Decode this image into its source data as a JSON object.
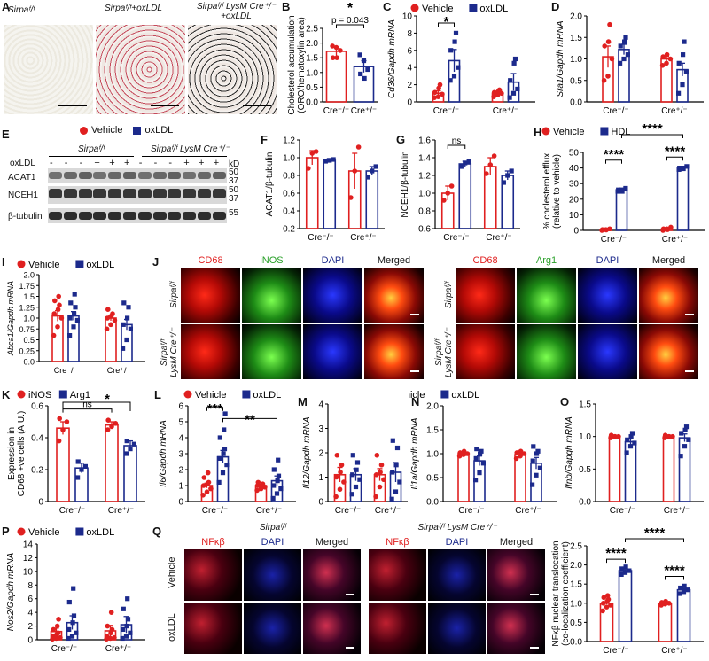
{
  "colors": {
    "vehicle": "#e02020",
    "oxldl": "#1c2a8c",
    "hdl": "#1c2a8c",
    "inos": "#e02020",
    "arg1": "#1c2a8c"
  },
  "panels": {
    "A": {
      "label": "A",
      "titles": [
        "Sirpaᶠ/ᶠ",
        "Sirpaᶠ/ᶠ+oxLDL",
        "Sirpaᶠ/ᶠ LysM Cre⁺/⁻\n+oxLDL"
      ]
    },
    "B": {
      "label": "B",
      "ylabel": "Cholesterol accumulation\n(ORO/hematoxylin area)",
      "pval": "p = 0.043",
      "star": "*"
    },
    "C": {
      "label": "C"
    },
    "D": {
      "label": "D"
    },
    "E": {
      "label": "E",
      "legend_vehicle": "Vehicle",
      "legend_oxldl": "oxLDL",
      "geno1": "Sirpaᶠ/ᶠ",
      "geno2": "Sirpaᶠ/ᶠ LysM Cre⁺/⁻",
      "row_label": "oxLDL",
      "signs": [
        "-",
        "-",
        "-",
        "+",
        "+",
        "+",
        "-",
        "-",
        "-",
        "+",
        "+",
        "+"
      ],
      "blots": [
        "ACAT1",
        "NCEH1",
        "β-tubulin"
      ],
      "kd_label": "kD",
      "markers": [
        "50",
        "37",
        "50",
        "37",
        "55"
      ]
    },
    "F": {
      "label": "F"
    },
    "G": {
      "label": "G"
    },
    "H": {
      "label": "H"
    },
    "I": {
      "label": "I"
    },
    "J": {
      "label": "J",
      "left_channels": [
        "CD68",
        "iNOS",
        "DAPI",
        "Merged"
      ],
      "right_channels": [
        "CD68",
        "Arg1",
        "DAPI",
        "Merged"
      ],
      "row1": "Sirpaᶠ/ᶠ",
      "row2": "Sirpaᶠ/ᶠ\nLysM Cre⁺/⁻"
    },
    "K": {
      "label": "K"
    },
    "L": {
      "label": "L"
    },
    "M": {
      "label": "M"
    },
    "N": {
      "label": "N"
    },
    "O": {
      "label": "O"
    },
    "P": {
      "label": "P"
    },
    "Q": {
      "label": "Q",
      "geno1": "Sirpaᶠ/ᶠ",
      "geno2": "Sirpaᶠ/ᶠ LysM Cre⁺/⁻",
      "channels": [
        "NFκβ",
        "DAPI",
        "Merged"
      ],
      "rows": [
        "Vehicle",
        "oxLDL"
      ]
    }
  },
  "chart_data": [
    {
      "id": "B",
      "type": "bar",
      "categories": [
        "Cre⁻/⁻",
        "Cre⁺/⁻"
      ],
      "ylim": [
        0,
        2.5
      ],
      "yticks": [
        0,
        0.5,
        1.0,
        1.5,
        2.0,
        2.5
      ],
      "series": [
        {
          "color": "#e02020",
          "values": [
            1.72,
            1.2
          ],
          "errors": [
            0.15,
            0.2
          ]
        }
      ],
      "bar_colors": [
        "#e02020",
        "#1c2a8c"
      ],
      "points": [
        [
          1.9,
          1.85,
          1.75,
          1.5,
          1.5
        ],
        [
          1.6,
          1.4,
          1.1,
          0.95,
          0.8
        ]
      ],
      "annotation": {
        "text": "p = 0.043",
        "star": "*"
      }
    },
    {
      "id": "C",
      "type": "bar",
      "ylabel": "Cd36/Gapdh mRNA",
      "ylim": [
        0,
        10
      ],
      "yticks": [
        0,
        2,
        4,
        6,
        8,
        10
      ],
      "groups": [
        "Cre⁻/⁻",
        "Cre⁺/⁻"
      ],
      "legend": [
        "Vehicle",
        "oxLDL"
      ],
      "values": [
        [
          1.0,
          4.8
        ],
        [
          1.0,
          2.3
        ]
      ],
      "errors": [
        [
          0.3,
          1.3
        ],
        [
          0.2,
          1.0
        ]
      ],
      "points": [
        [
          [
            0.5,
            0.6,
            0.9,
            1.1,
            1.6,
            2.0
          ],
          [
            2.5,
            3.0,
            4.0,
            6.0,
            7.0,
            8.0
          ]
        ],
        [
          [
            0.6,
            0.8,
            1.0,
            1.1,
            1.2,
            1.4
          ],
          [
            0.5,
            1.0,
            1.5,
            2.5,
            4.5,
            5.0
          ]
        ]
      ],
      "sig": [
        {
          "text": "*"
        }
      ]
    },
    {
      "id": "D",
      "type": "bar",
      "ylabel": "Sra1/Gapdh mRNA",
      "ylim": [
        0,
        2.0
      ],
      "yticks": [
        0.0,
        0.5,
        1.0,
        1.5,
        2.0
      ],
      "groups": [
        "Cre⁻/⁻",
        "Cre⁺/⁻"
      ],
      "values": [
        [
          1.05,
          1.22
        ],
        [
          1.0,
          0.75
        ]
      ],
      "errors": [
        [
          0.25,
          0.12
        ],
        [
          0.06,
          0.15
        ]
      ],
      "points": [
        [
          [
            0.5,
            0.6,
            1.0,
            1.3,
            1.4,
            1.8
          ],
          [
            0.9,
            1.0,
            1.1,
            1.3,
            1.4,
            1.5
          ]
        ],
        [
          [
            0.85,
            0.9,
            1.0,
            1.05,
            1.1
          ],
          [
            0.2,
            0.4,
            0.7,
            0.9,
            1.1,
            1.4
          ]
        ]
      ]
    },
    {
      "id": "F",
      "type": "bar",
      "ylabel": "ACAT1/β-tubulin",
      "ylim": [
        0.2,
        1.2
      ],
      "yticks": [
        0.2,
        0.4,
        0.6,
        0.8,
        1.0,
        1.2
      ],
      "groups": [
        "Cre⁻/⁻",
        "Cre⁺/⁻"
      ],
      "values": [
        [
          1.0,
          0.97
        ],
        [
          0.85,
          0.85
        ]
      ],
      "errors": [
        [
          0.08,
          0.02
        ],
        [
          0.2,
          0.05
        ]
      ],
      "points": [
        [
          [
            0.88,
            1.05,
            1.07
          ],
          [
            0.96,
            0.97,
            0.98
          ]
        ],
        [
          [
            0.55,
            0.85,
            1.12
          ],
          [
            0.78,
            0.85,
            0.9
          ]
        ]
      ]
    },
    {
      "id": "G",
      "type": "bar",
      "ylabel": "NCEH1/β-tubulin",
      "ylim": [
        0.6,
        1.6
      ],
      "yticks": [
        0.6,
        0.8,
        1.0,
        1.2,
        1.4,
        1.6
      ],
      "groups": [
        "Cre⁻/⁻",
        "Cre⁺/⁻"
      ],
      "values": [
        [
          1.0,
          1.33
        ],
        [
          1.3,
          1.2
        ]
      ],
      "errors": [
        [
          0.08,
          0.03
        ],
        [
          0.1,
          0.05
        ]
      ],
      "points": [
        [
          [
            0.92,
            1.0,
            1.08
          ],
          [
            1.3,
            1.34,
            1.36
          ]
        ],
        [
          [
            1.22,
            1.32,
            1.42
          ],
          [
            1.12,
            1.2,
            1.25
          ]
        ]
      ],
      "sig": [
        {
          "text": "ns"
        }
      ]
    },
    {
      "id": "H",
      "type": "bar",
      "ylabel": "% cholesterol efflux\n(relative to vehicle)",
      "ylim": [
        0,
        50
      ],
      "yticks": [
        0,
        10,
        20,
        30,
        40,
        50
      ],
      "groups": [
        "Cre⁻/⁻",
        "Cre⁺/⁻"
      ],
      "legend": [
        "Vehicle",
        "HDL"
      ],
      "values": [
        [
          0.5,
          26
        ],
        [
          1.0,
          40
        ]
      ],
      "errors": [
        [
          0.3,
          1
        ],
        [
          0.5,
          1
        ]
      ],
      "points": [
        [
          [
            0,
            0.5,
            1,
            0.5,
            0.3
          ],
          [
            25,
            26,
            27,
            26,
            25
          ]
        ],
        [
          [
            0,
            1,
            2,
            1,
            0.5
          ],
          [
            39,
            40,
            41,
            40,
            39.5
          ]
        ]
      ],
      "sig": [
        {
          "text": "****"
        },
        {
          "text": "****"
        },
        {
          "text": "****"
        }
      ]
    },
    {
      "id": "I",
      "type": "bar",
      "ylabel": "Abca1/Gapdh mRNA",
      "ylim": [
        0,
        2.0
      ],
      "yticks": [
        0.0,
        0.25,
        0.5,
        0.75,
        1.0,
        1.25,
        1.5,
        1.75,
        2.0
      ],
      "groups": [
        "Cre⁻/⁻",
        "Cre⁺/⁻"
      ],
      "legend": [
        "Vehicle",
        "oxLDL"
      ],
      "values": [
        [
          1.05,
          1.05
        ],
        [
          1.0,
          0.85
        ]
      ],
      "errors": [
        [
          0.12,
          0.1
        ],
        [
          0.06,
          0.12
        ]
      ],
      "points": [
        [
          [
            0.6,
            0.8,
            1.0,
            1.1,
            1.2,
            1.3,
            1.4,
            1.5
          ],
          [
            0.6,
            0.8,
            0.95,
            1.0,
            1.1,
            1.25,
            1.35,
            1.55
          ]
        ],
        [
          [
            0.75,
            0.85,
            0.95,
            1.0,
            1.05,
            1.1,
            1.2
          ],
          [
            0.3,
            0.5,
            0.75,
            0.85,
            1.0,
            1.25,
            1.35
          ]
        ]
      ]
    },
    {
      "id": "K",
      "type": "bar",
      "ylabel": "Expression in\nCD68 +ve cells (A.U.)",
      "ylim": [
        0,
        0.6
      ],
      "yticks": [
        0,
        0.2,
        0.4,
        0.6
      ],
      "groups": [
        "Cre⁻/⁻",
        "Cre⁺/⁻"
      ],
      "legend": [
        "iNOS",
        "Arg1"
      ],
      "values": [
        [
          0.46,
          0.21
        ],
        [
          0.48,
          0.35
        ]
      ],
      "errors": [
        [
          0.04,
          0.03
        ],
        [
          0.02,
          0.03
        ]
      ],
      "points": [
        [
          [
            0.38,
            0.45,
            0.5,
            0.52
          ],
          [
            0.15,
            0.2,
            0.22,
            0.25
          ]
        ],
        [
          [
            0.45,
            0.47,
            0.49,
            0.51
          ],
          [
            0.3,
            0.33,
            0.36,
            0.38
          ]
        ]
      ],
      "sig": [
        {
          "text": "ns"
        },
        {
          "text": "*"
        }
      ]
    },
    {
      "id": "L",
      "type": "bar",
      "ylabel": "Il6/Gapdh mRNA",
      "ylim": [
        0,
        6
      ],
      "yticks": [
        0,
        1,
        2,
        3,
        4,
        5,
        6
      ],
      "groups": [
        "Cre⁻/⁻",
        "Cre⁺/⁻"
      ],
      "legend": [
        "Vehicle",
        "oxLDL"
      ],
      "values": [
        [
          1.0,
          2.8
        ],
        [
          1.0,
          1.3
        ]
      ],
      "errors": [
        [
          0.15,
          0.4
        ],
        [
          0.08,
          0.3
        ]
      ],
      "points": [
        [
          [
            0.4,
            0.6,
            0.8,
            1.0,
            1.1,
            1.2,
            1.5,
            1.8
          ],
          [
            1.2,
            1.8,
            2.3,
            2.7,
            3.0,
            3.3,
            4.0,
            4.5,
            5.5
          ]
        ],
        [
          [
            0.7,
            0.8,
            0.9,
            1.0,
            1.0,
            1.1,
            1.2
          ],
          [
            0.2,
            0.5,
            0.8,
            1.0,
            1.3,
            1.6,
            2.0,
            2.6
          ]
        ]
      ],
      "sig": [
        {
          "text": "***"
        },
        {
          "text": "**"
        }
      ]
    },
    {
      "id": "M",
      "type": "bar",
      "ylabel": "Il12/Gapdh mRNA",
      "ylim": [
        0,
        4
      ],
      "yticks": [
        0,
        1,
        2,
        3,
        4
      ],
      "groups": [
        "Cre⁻/⁻",
        "Cre⁺/⁻"
      ],
      "values": [
        [
          1.1,
          1.1
        ],
        [
          1.1,
          1.2
        ]
      ],
      "errors": [
        [
          0.3,
          0.25
        ],
        [
          0.25,
          0.4
        ]
      ],
      "points": [
        [
          [
            0.2,
            0.5,
            0.8,
            1.0,
            1.2,
            1.5,
            1.9
          ],
          [
            0.3,
            0.6,
            0.9,
            1.1,
            1.3,
            1.6,
            1.9
          ]
        ],
        [
          [
            0.2,
            0.6,
            0.9,
            1.1,
            1.2,
            1.5,
            1.9
          ],
          [
            0.1,
            0.4,
            0.8,
            1.2,
            1.5,
            2.2,
            2.5
          ]
        ]
      ]
    },
    {
      "id": "N",
      "type": "bar",
      "ylabel": "Il1a/Gapdh mRNA",
      "ylim": [
        0,
        2.0
      ],
      "yticks": [
        0.0,
        0.5,
        1.0,
        1.5,
        2.0
      ],
      "groups": [
        "Cre⁻/⁻",
        "Cre⁺/⁻"
      ],
      "legend": [
        "Vehicle",
        "oxLDL"
      ],
      "values": [
        [
          1.0,
          0.85
        ],
        [
          0.98,
          0.8
        ]
      ],
      "errors": [
        [
          0.03,
          0.1
        ],
        [
          0.03,
          0.12
        ]
      ],
      "points": [
        [
          [
            0.95,
            0.98,
            1.0,
            1.02,
            1.05,
            1.0
          ],
          [
            0.45,
            0.6,
            0.8,
            0.9,
            1.0,
            1.05,
            1.1
          ]
        ],
        [
          [
            0.9,
            0.95,
            1.0,
            1.02,
            1.05,
            1.0
          ],
          [
            0.35,
            0.55,
            0.7,
            0.85,
            1.0,
            1.05,
            1.15
          ]
        ]
      ]
    },
    {
      "id": "O",
      "type": "bar",
      "ylabel": "Ifnb/Gapgh mRNA",
      "ylim": [
        0,
        1.5
      ],
      "yticks": [
        0.0,
        0.5,
        1.0,
        1.5
      ],
      "groups": [
        "Cre⁻/⁻",
        "Cre⁺/⁻"
      ],
      "values": [
        [
          1.0,
          0.92
        ],
        [
          1.0,
          0.98
        ]
      ],
      "errors": [
        [
          0.01,
          0.05
        ],
        [
          0.01,
          0.06
        ]
      ],
      "points": [
        [
          [
            0.98,
            1.0,
            1.0,
            1.02,
            1.0
          ],
          [
            0.75,
            0.85,
            0.9,
            0.95,
            1.0,
            1.05
          ]
        ],
        [
          [
            0.98,
            1.0,
            1.0,
            1.02,
            1.0
          ],
          [
            0.7,
            0.85,
            0.95,
            1.05,
            1.1,
            1.15
          ]
        ]
      ]
    },
    {
      "id": "P",
      "type": "bar",
      "ylabel": "Nos2/Gapdh mRNA",
      "ylim": [
        0,
        14
      ],
      "yticks": [
        0,
        2,
        4,
        6,
        8,
        10,
        12,
        14
      ],
      "groups": [
        "Cre⁻/⁻",
        "Cre⁺/⁻"
      ],
      "legend": [
        "Vehicle",
        "oxLDL"
      ],
      "values": [
        [
          1.2,
          2.5
        ],
        [
          1.3,
          2.2
        ]
      ],
      "errors": [
        [
          0.5,
          1.0
        ],
        [
          0.8,
          1.2
        ]
      ],
      "points": [
        [
          [
            0.1,
            0.2,
            0.3,
            0.5,
            0.8,
            1.0,
            1.5,
            2.0,
            3.0
          ],
          [
            0.2,
            0.5,
            1.0,
            1.5,
            2.5,
            3.5,
            5.5,
            7.5
          ]
        ],
        [
          [
            0.1,
            0.2,
            0.3,
            0.5,
            1.0,
            1.5,
            2.0,
            4.0
          ],
          [
            0.2,
            0.5,
            1.0,
            1.5,
            2.0,
            3.0,
            4.5,
            6.0
          ]
        ]
      ]
    },
    {
      "id": "Qc",
      "type": "bar",
      "ylabel": "NFκβ nuclear translocation\n(co-localization coefficient)",
      "ylim": [
        0,
        2.5
      ],
      "yticks": [
        0.0,
        0.5,
        1.0,
        1.5,
        2.0,
        2.5
      ],
      "groups": [
        "Cre⁻/⁻",
        "Cre⁺/⁻"
      ],
      "values": [
        [
          1.0,
          1.85
        ],
        [
          1.0,
          1.35
        ]
      ],
      "errors": [
        [
          0.03,
          0.03
        ],
        [
          0.02,
          0.03
        ]
      ],
      "points": [
        [
          [
            0.8,
            0.9,
            0.95,
            1.0,
            1.05,
            1.1,
            1.15,
            1.2
          ],
          [
            1.75,
            1.8,
            1.85,
            1.9,
            1.95
          ]
        ],
        [
          [
            0.95,
            0.98,
            1.0,
            1.02,
            1.05
          ],
          [
            1.25,
            1.3,
            1.35,
            1.4,
            1.45
          ]
        ]
      ],
      "sig": [
        {
          "text": "****"
        },
        {
          "text": "****"
        },
        {
          "text": "****"
        }
      ]
    }
  ],
  "axis_labels": {
    "cre_neg": "Cre⁻/⁻",
    "cre_pos": "Cre⁺/⁻"
  }
}
